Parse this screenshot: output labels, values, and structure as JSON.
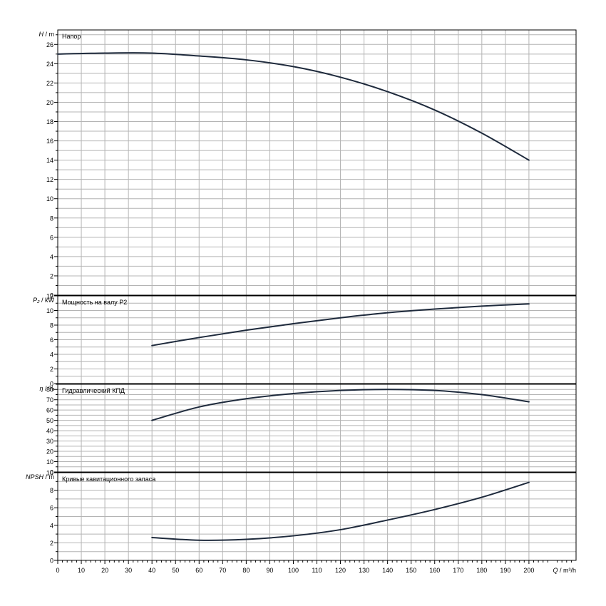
{
  "chart_data": [
    {
      "type": "line",
      "title": "Напор",
      "ylabel_var": "H",
      "ylabel_unit": "m",
      "ylim": [
        0,
        27.5
      ],
      "ytick_step": 1,
      "ytick_label_step": 2,
      "grid": true,
      "series": [
        {
          "x": [
            0,
            20,
            40,
            60,
            80,
            100,
            120,
            140,
            160,
            180,
            200
          ],
          "y": [
            25.0,
            25.1,
            25.1,
            24.8,
            24.4,
            23.7,
            22.6,
            21.1,
            19.2,
            16.8,
            14.0
          ]
        }
      ]
    },
    {
      "type": "line",
      "title": "Мощность на валу P2",
      "ylabel_var": "P₂",
      "ylabel_unit": "kW",
      "ylim": [
        0,
        12
      ],
      "ytick_step": 1,
      "ytick_label_step": 2,
      "grid": true,
      "series": [
        {
          "x": [
            40,
            60,
            80,
            100,
            120,
            140,
            160,
            180,
            200
          ],
          "y": [
            5.2,
            6.3,
            7.3,
            8.2,
            9.0,
            9.7,
            10.2,
            10.6,
            10.9
          ]
        }
      ]
    },
    {
      "type": "line",
      "title": "Гидравлический КПД",
      "ylabel_var": "η",
      "ylabel_unit": "%",
      "ylim": [
        0,
        85
      ],
      "ytick_step": 5,
      "ytick_label_step": 10,
      "grid": true,
      "series": [
        {
          "x": [
            40,
            60,
            80,
            100,
            120,
            140,
            160,
            180,
            200
          ],
          "y": [
            50,
            63,
            71,
            76,
            79,
            80,
            79,
            75,
            68
          ]
        }
      ]
    },
    {
      "type": "line",
      "title": "Кривые кавитационного запаса",
      "ylabel_var": "NPSH",
      "ylabel_unit": "m",
      "ylim": [
        0,
        10
      ],
      "ytick_step": 1,
      "ytick_label_step": 2,
      "grid": true,
      "series": [
        {
          "x": [
            40,
            60,
            80,
            100,
            120,
            140,
            160,
            180,
            200
          ],
          "y": [
            2.6,
            2.3,
            2.4,
            2.8,
            3.5,
            4.6,
            5.8,
            7.2,
            8.9
          ]
        }
      ]
    }
  ],
  "x_axis": {
    "label_var": "Q",
    "label_unit": "m³/h",
    "xlim": [
      0,
      220
    ],
    "ticks": [
      0,
      10,
      20,
      30,
      40,
      50,
      60,
      70,
      80,
      90,
      100,
      110,
      120,
      130,
      140,
      150,
      160,
      170,
      180,
      190,
      200
    ]
  },
  "colors": {
    "grid": "#b4b4b4",
    "frame": "#000000",
    "curve": "#1e2a3c"
  }
}
